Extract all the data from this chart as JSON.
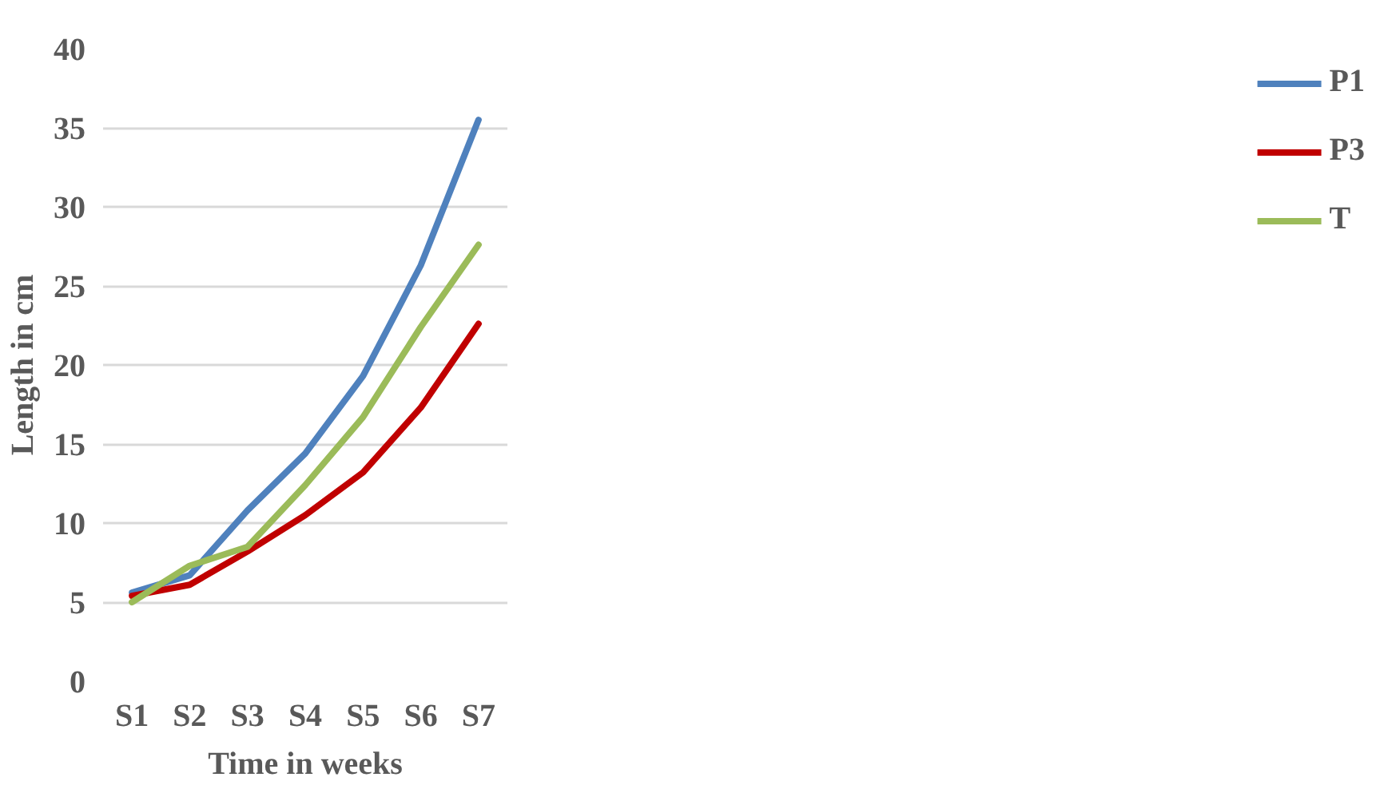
{
  "chart_data": {
    "type": "line",
    "xlabel": "Time in weeks",
    "ylabel": "Length in cm",
    "categories": [
      "S1",
      "S2",
      "S3",
      "S4",
      "S5",
      "S6",
      "S7"
    ],
    "series": [
      {
        "name": "P1",
        "color": "#4f81bd",
        "values": [
          5.6,
          6.7,
          10.8,
          14.4,
          19.3,
          26.3,
          35.5
        ]
      },
      {
        "name": "P3",
        "color": "#c00000",
        "values": [
          5.4,
          6.1,
          8.2,
          10.5,
          13.2,
          17.3,
          22.6
        ]
      },
      {
        "name": "T",
        "color": "#9bbb59",
        "values": [
          5.0,
          7.3,
          8.5,
          12.4,
          16.7,
          22.4,
          27.6
        ]
      }
    ],
    "ylim": [
      0,
      40
    ],
    "yticks": [
      0,
      5,
      10,
      15,
      20,
      25,
      30,
      35,
      40
    ],
    "grid": "y",
    "legend": "right",
    "marker": "none",
    "line_style": "solid"
  }
}
